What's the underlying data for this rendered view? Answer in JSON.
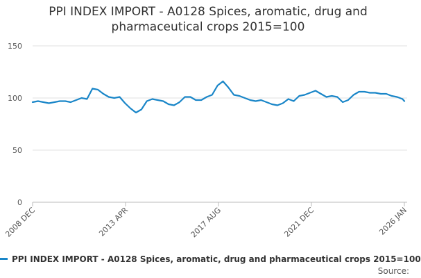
{
  "chart_data": {
    "type": "line",
    "title": "PPI INDEX IMPORT - A0128 Spices, aromatic, drug and pharmaceutical crops 2015=100",
    "xlabel": "",
    "ylabel": "",
    "ylim": [
      0,
      150
    ],
    "yticks": [
      0,
      50,
      100,
      150
    ],
    "grid": true,
    "legend_position": "bottom",
    "x_tick_labels": [
      "2008 DEC",
      "2013 APR",
      "2017 AUG",
      "2021 DEC",
      "2026 JAN"
    ],
    "x_start": "2008-12",
    "x_end": "2026-01",
    "color": "#1a86c8",
    "series": [
      {
        "name": "PPI INDEX IMPORT - A0128 Spices, aromatic, drug and pharmaceutical crops 2015=100",
        "x": [
          "2008-12",
          "2009-03",
          "2009-06",
          "2009-09",
          "2009-12",
          "2010-03",
          "2010-06",
          "2010-09",
          "2010-12",
          "2011-03",
          "2011-06",
          "2011-09",
          "2011-12",
          "2012-03",
          "2012-06",
          "2012-09",
          "2012-12",
          "2013-03",
          "2013-06",
          "2013-09",
          "2013-12",
          "2014-03",
          "2014-06",
          "2014-09",
          "2014-12",
          "2015-03",
          "2015-06",
          "2015-09",
          "2015-12",
          "2016-03",
          "2016-06",
          "2016-09",
          "2016-12",
          "2017-03",
          "2017-06",
          "2017-09",
          "2017-12",
          "2018-03",
          "2018-06",
          "2018-09",
          "2018-12",
          "2019-03",
          "2019-06",
          "2019-09",
          "2019-12",
          "2020-03",
          "2020-06",
          "2020-09",
          "2020-12",
          "2021-03",
          "2021-06",
          "2021-09",
          "2021-12",
          "2022-03",
          "2022-06",
          "2022-09",
          "2022-12",
          "2023-03",
          "2023-06",
          "2023-09",
          "2023-12",
          "2024-03",
          "2024-06",
          "2024-09",
          "2024-12",
          "2025-03",
          "2025-06",
          "2025-09",
          "2025-12",
          "2026-01"
        ],
        "y": [
          96,
          97,
          96,
          95,
          96,
          97,
          97,
          96,
          98,
          100,
          99,
          109,
          108,
          104,
          101,
          100,
          101,
          95,
          90,
          86,
          89,
          97,
          99,
          98,
          97,
          94,
          93,
          96,
          101,
          101,
          98,
          98,
          101,
          103,
          112,
          116,
          110,
          103,
          102,
          100,
          98,
          97,
          98,
          96,
          94,
          93,
          95,
          99,
          97,
          102,
          103,
          105,
          107,
          104,
          101,
          102,
          101,
          96,
          98,
          103,
          106,
          106,
          105,
          105,
          104,
          104,
          102,
          101,
          99,
          97
        ]
      }
    ]
  },
  "source_label": "Source:"
}
